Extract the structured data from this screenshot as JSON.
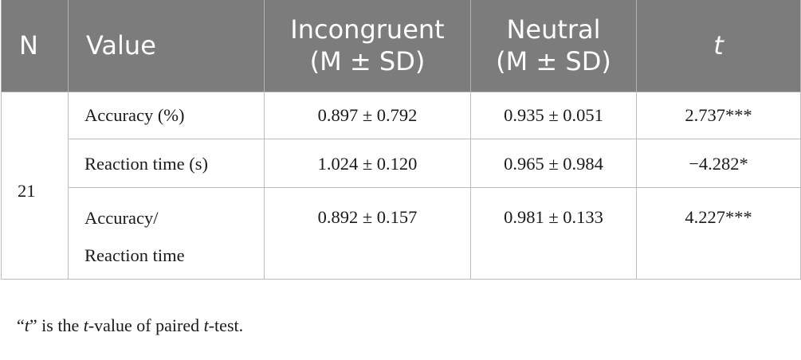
{
  "table": {
    "headers": {
      "n": "N",
      "value": "Value",
      "incongruent_line1": "Incongruent",
      "incongruent_line2": "(M ± SD)",
      "neutral_line1": "Neutral",
      "neutral_line2": "(M ± SD)",
      "t": "t"
    },
    "n_value": "21",
    "rows": [
      {
        "label": "Accuracy (%)",
        "incongruent": "0.897 ± 0.792",
        "neutral": "0.935 ± 0.051",
        "t": "2.737***"
      },
      {
        "label": "Reaction time (s)",
        "incongruent": "1.024 ± 0.120",
        "neutral": "0.965 ± 0.984",
        "t": "−4.282*"
      },
      {
        "label_line1": "Accuracy/",
        "label_line2": "Reaction time",
        "incongruent": "0.892 ± 0.157",
        "neutral": "0.981 ± 0.133",
        "t": "4.227***"
      }
    ]
  },
  "footnote": {
    "open_quote": "“",
    "t1": "t",
    "part1": "” is the ",
    "t2": "t",
    "part2": "-value of paired ",
    "t3": "t",
    "part3": "-test."
  },
  "colors": {
    "header_bg": "#7c7c7c",
    "header_text": "#ffffff",
    "border": "#bdbdbd"
  }
}
